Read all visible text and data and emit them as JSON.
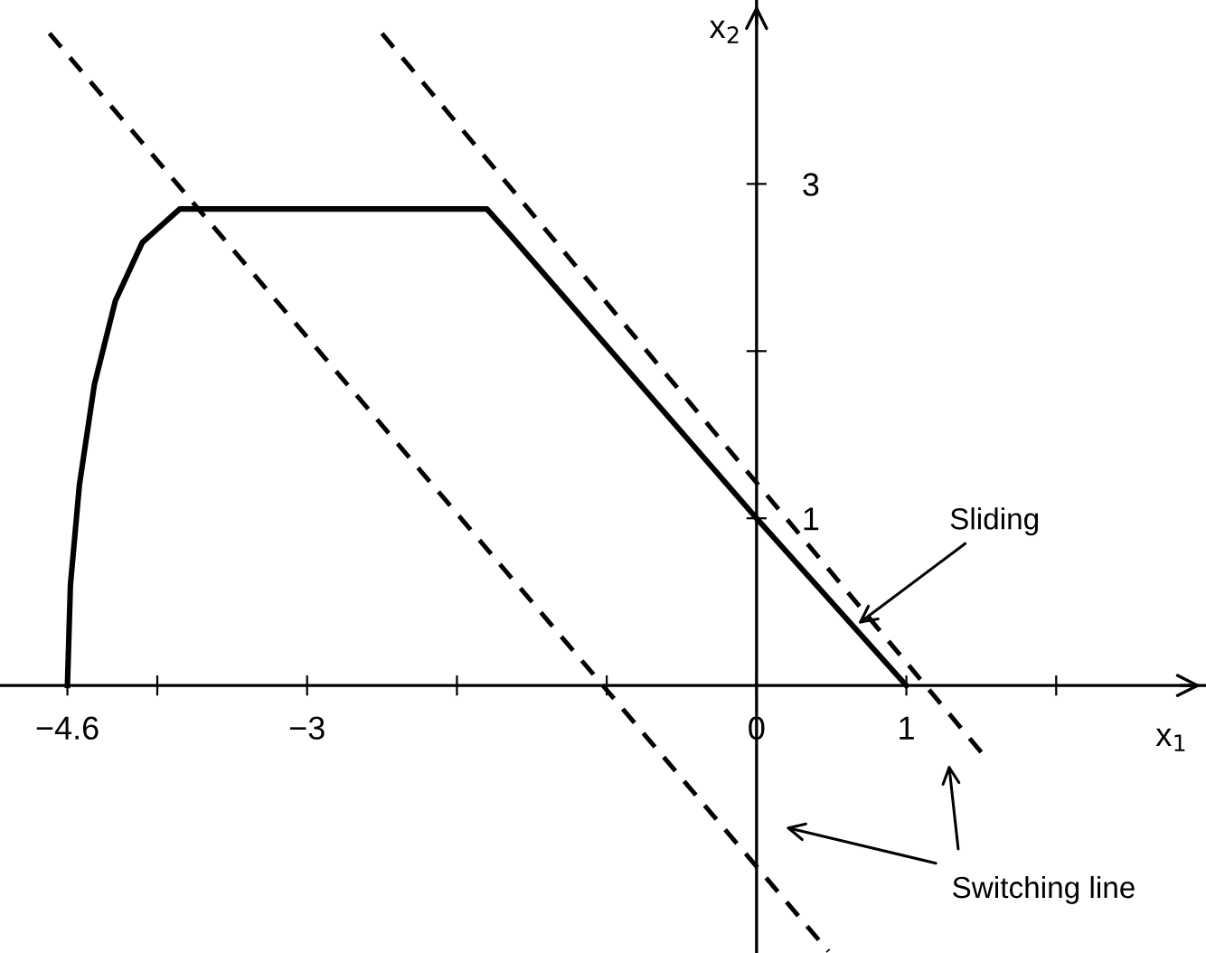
{
  "chart_data": {
    "type": "line",
    "xlabel": "x$_{1}$",
    "ylabel": "x$_{2}$",
    "xlim": [
      -5.05,
      3.0
    ],
    "ylim": [
      -1.6,
      4.1
    ],
    "xticks": [
      -4.6,
      {
        "value": -4,
        "label": null
      },
      -3,
      {
        "value": -2,
        "label": null
      },
      {
        "value": -1,
        "label": null
      },
      0,
      1,
      {
        "value": 2,
        "label": null
      }
    ],
    "yticks": [
      1,
      {
        "value": 2,
        "label": null
      },
      3
    ],
    "grid": false,
    "legend": false,
    "marker": "none",
    "series": [
      {
        "color": "#000000",
        "line_style": "solid",
        "x": [
          -4.6,
          -4.58,
          -4.52,
          -4.42,
          -4.28,
          -4.1,
          -3.85,
          -1.8,
          -1.65,
          0,
          1
        ],
        "values": [
          0,
          0.6,
          1.2,
          1.8,
          2.3,
          2.65,
          2.85,
          2.85,
          2.7,
          1,
          0
        ]
      },
      {
        "color": "#000000",
        "line_style": "dashed",
        "x": [
          -4.72,
          0.48
        ],
        "values": [
          3.9,
          -1.59
        ]
      },
      {
        "color": "#000000",
        "line_style": "dashed",
        "x": [
          -2.5,
          1.5
        ],
        "values": [
          3.9,
          -0.4
        ]
      }
    ],
    "annotations": [
      {
        "text": "Sliding",
        "x": 0.65,
        "y": 0.35
      },
      "Switching line"
    ]
  }
}
